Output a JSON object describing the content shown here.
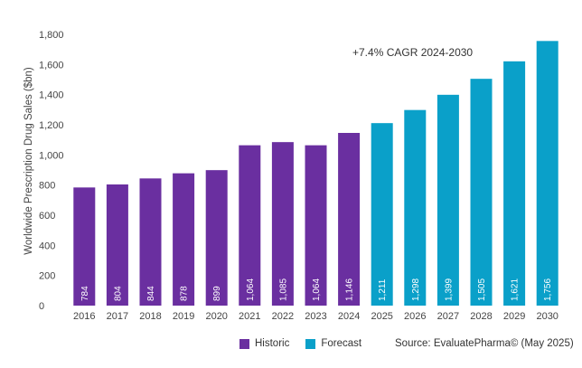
{
  "chart_data": {
    "type": "bar",
    "categories": [
      "2016",
      "2017",
      "2018",
      "2019",
      "2020",
      "2021",
      "2022",
      "2023",
      "2024",
      "2025",
      "2026",
      "2027",
      "2028",
      "2029",
      "2030"
    ],
    "values": [
      784,
      804,
      844,
      878,
      899,
      1064,
      1085,
      1064,
      1146,
      1211,
      1298,
      1399,
      1505,
      1621,
      1756
    ],
    "value_labels": [
      "784",
      "804",
      "844",
      "878",
      "899",
      "1,064",
      "1,085",
      "1,064",
      "1,146",
      "1,211",
      "1,298",
      "1,399",
      "1,505",
      "1,621",
      "1,756"
    ],
    "series_kind": [
      "Historic",
      "Historic",
      "Historic",
      "Historic",
      "Historic",
      "Historic",
      "Historic",
      "Historic",
      "Historic",
      "Forecast",
      "Forecast",
      "Forecast",
      "Forecast",
      "Forecast",
      "Forecast"
    ],
    "ylabel": "Worldwide Prescription Drug Sales ($bn)",
    "ylim": [
      0,
      1800
    ],
    "yticks": [
      "0",
      "200",
      "400",
      "600",
      "800",
      "1,000",
      "1,200",
      "1,400",
      "1,600",
      "1,800"
    ],
    "yticks_values": [
      0,
      200,
      400,
      600,
      800,
      1000,
      1200,
      1400,
      1600,
      1800
    ],
    "grid": false,
    "annotation": "+7.4% CAGR 2024-2030",
    "legend": [
      {
        "name": "Historic",
        "color": "#6a2fa0"
      },
      {
        "name": "Forecast",
        "color": "#0aa0c9"
      }
    ],
    "legend_position": "bottom",
    "source": "Source: EvaluatePharma© (May 2025)"
  }
}
